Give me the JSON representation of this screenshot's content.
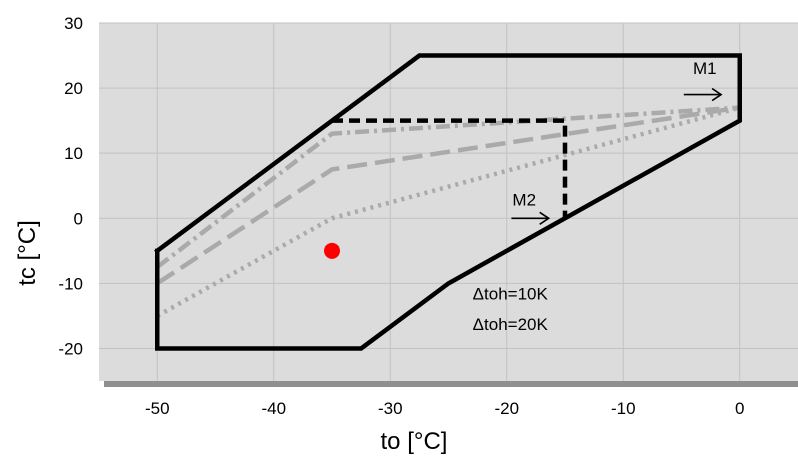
{
  "chart_data": {
    "type": "line",
    "title": "",
    "xlabel": "to [°C]",
    "ylabel": "tc [°C]",
    "xlim": [
      -55,
      5
    ],
    "ylim": [
      -25,
      30
    ],
    "xticks": [
      -50,
      -40,
      -30,
      -20,
      -10,
      0
    ],
    "yticks": [
      -20,
      -10,
      0,
      10,
      20,
      30
    ],
    "grid": true,
    "series": [
      {
        "name": "",
        "style": "solid-black",
        "color": "#000000",
        "points": [
          [
            -50,
            -5
          ],
          [
            -35,
            15
          ],
          [
            -27.5,
            25
          ],
          [
            0,
            25
          ],
          [
            0,
            15
          ],
          [
            -25,
            -10
          ],
          [
            -32.5,
            -20
          ],
          [
            -50,
            -20
          ],
          [
            -50,
            -5
          ]
        ]
      },
      {
        "name": "",
        "style": "dashed-black",
        "color": "#000000",
        "points": [
          [
            -35,
            15
          ],
          [
            -15,
            15
          ],
          [
            -15,
            0
          ]
        ]
      },
      {
        "name": "",
        "style": "dashdot-gray",
        "color": "#aaaaaa",
        "points": [
          [
            -50,
            -7.5
          ],
          [
            -35,
            13
          ],
          [
            0,
            17
          ]
        ]
      },
      {
        "name": "",
        "style": "dashed-gray",
        "color": "#aaaaaa",
        "points": [
          [
            -50,
            -10
          ],
          [
            -35,
            7.5
          ],
          [
            0,
            17
          ]
        ]
      },
      {
        "name": "",
        "style": "dotted-gray",
        "color": "#aaaaaa",
        "points": [
          [
            -50,
            -15
          ],
          [
            -35,
            0
          ],
          [
            0,
            17
          ]
        ]
      }
    ],
    "markers": [
      {
        "name": "operating-point",
        "x": -35,
        "y": -5,
        "color": "#ff0000"
      }
    ],
    "annotations": [
      {
        "text": "M1",
        "x": -3,
        "y": 22.2,
        "arrow_from": [
          -4.8,
          19
        ],
        "arrow_to": [
          -1.6,
          19
        ]
      },
      {
        "text": "M2",
        "x": -18.5,
        "y": 2,
        "arrow_from": [
          -19.6,
          0
        ],
        "arrow_to": [
          -16.4,
          0
        ]
      },
      {
        "text": "Δtoh=10K",
        "x": -19.7,
        "y": -12.5
      },
      {
        "text": "Δtoh=20K",
        "x": -19.7,
        "y": -17.2
      }
    ]
  }
}
